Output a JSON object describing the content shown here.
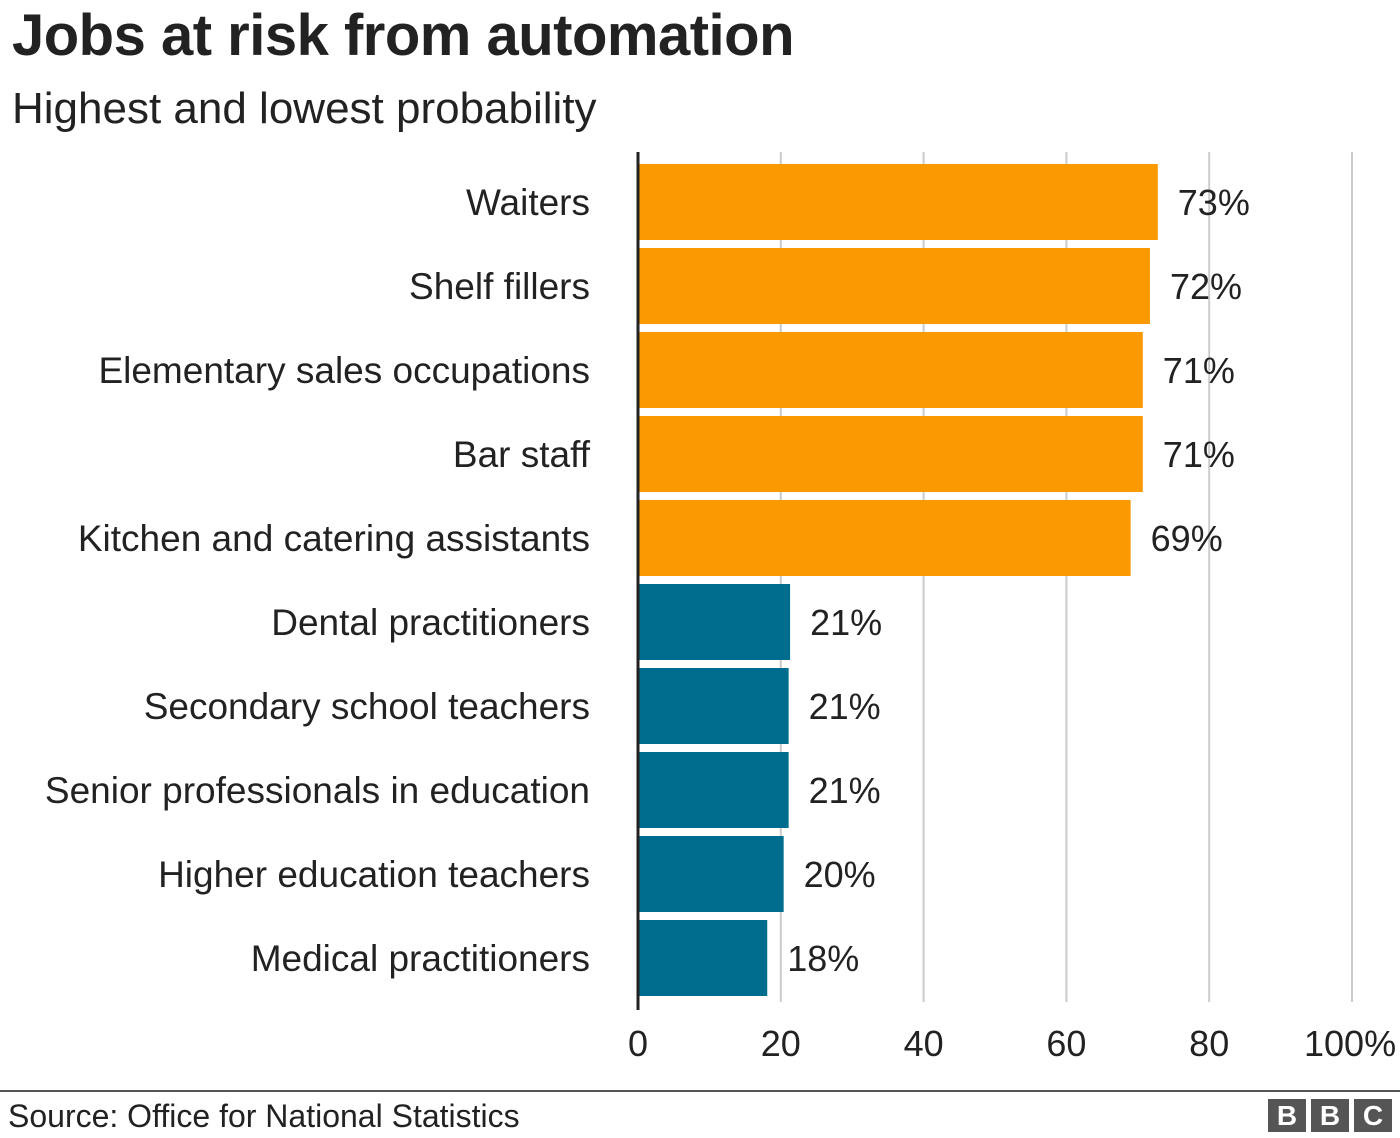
{
  "title": "Jobs at risk from automation",
  "subtitle": "Highest and lowest probability",
  "source": "Source: Office for National Statistics",
  "logo_letters": [
    "B",
    "B",
    "C"
  ],
  "colors": {
    "high": "#FA9A00",
    "low": "#006D8F",
    "grid": "#cccccc",
    "axis": "#222222",
    "text": "#222222"
  },
  "chart_data": {
    "type": "bar",
    "orientation": "horizontal",
    "title": "Jobs at risk from automation",
    "subtitle": "Highest and lowest probability",
    "categories": [
      "Waiters",
      "Shelf fillers",
      "Elementary sales occupations",
      "Bar staff",
      "Kitchen and catering assistants",
      "Dental practitioners",
      "Secondary school teachers",
      "Senior professionals in education",
      "Higher education teachers",
      "Medical practitioners"
    ],
    "values": [
      72.8,
      71.7,
      70.7,
      70.7,
      69.0,
      21.3,
      21.1,
      21.1,
      20.4,
      18.1
    ],
    "value_labels": [
      "73%",
      "72%",
      "71%",
      "71%",
      "69%",
      "21%",
      "21%",
      "21%",
      "20%",
      "18%"
    ],
    "groups": [
      "high",
      "high",
      "high",
      "high",
      "high",
      "low",
      "low",
      "low",
      "low",
      "low"
    ],
    "xlim": [
      0,
      100
    ],
    "xticks": [
      0,
      20,
      40,
      60,
      80,
      100
    ],
    "xtick_labels": [
      "0",
      "20",
      "40",
      "60",
      "80",
      "100%"
    ],
    "grid": true,
    "xlabel": "",
    "ylabel": ""
  }
}
